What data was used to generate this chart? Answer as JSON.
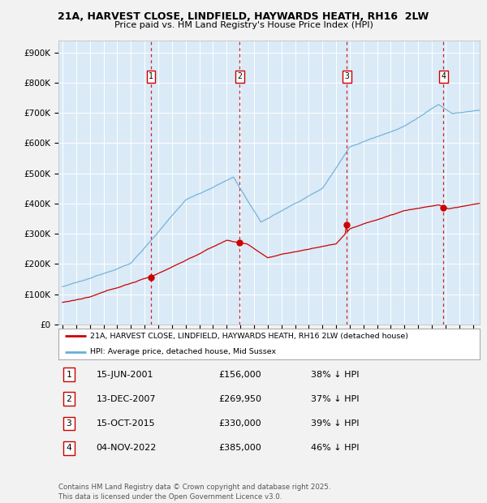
{
  "title": "21A, HARVEST CLOSE, LINDFIELD, HAYWARDS HEATH, RH16  2LW",
  "subtitle": "Price paid vs. HM Land Registry's House Price Index (HPI)",
  "yticks": [
    0,
    100000,
    200000,
    300000,
    400000,
    500000,
    600000,
    700000,
    800000,
    900000
  ],
  "ytick_labels": [
    "£0",
    "£100K",
    "£200K",
    "£300K",
    "£400K",
    "£500K",
    "£600K",
    "£700K",
    "£800K",
    "£900K"
  ],
  "ylim": [
    0,
    940000
  ],
  "xlim_start": 1994.7,
  "xlim_end": 2025.5,
  "background_color": "#daeaf7",
  "grid_color": "#ffffff",
  "transactions": [
    {
      "num": 1,
      "date": "15-JUN-2001",
      "price": 156000,
      "year": 2001.46,
      "label": "£156,000",
      "pct": "38% ↓ HPI"
    },
    {
      "num": 2,
      "date": "13-DEC-2007",
      "price": 269950,
      "year": 2007.96,
      "label": "£269,950",
      "pct": "37% ↓ HPI"
    },
    {
      "num": 3,
      "date": "15-OCT-2015",
      "price": 330000,
      "year": 2015.79,
      "label": "£330,000",
      "pct": "39% ↓ HPI"
    },
    {
      "num": 4,
      "date": "04-NOV-2022",
      "price": 385000,
      "year": 2022.84,
      "label": "£385,000",
      "pct": "46% ↓ HPI"
    }
  ],
  "legend_line1": "21A, HARVEST CLOSE, LINDFIELD, HAYWARDS HEATH, RH16 2LW (detached house)",
  "legend_line2": "HPI: Average price, detached house, Mid Sussex",
  "footnote": "Contains HM Land Registry data © Crown copyright and database right 2025.\nThis data is licensed under the Open Government Licence v3.0.",
  "hpi_color": "#6baed6",
  "sale_color": "#cc0000",
  "marker_box_color": "#cc0000",
  "dashed_line_color": "#cc0000",
  "fig_bg_color": "#f2f2f2"
}
